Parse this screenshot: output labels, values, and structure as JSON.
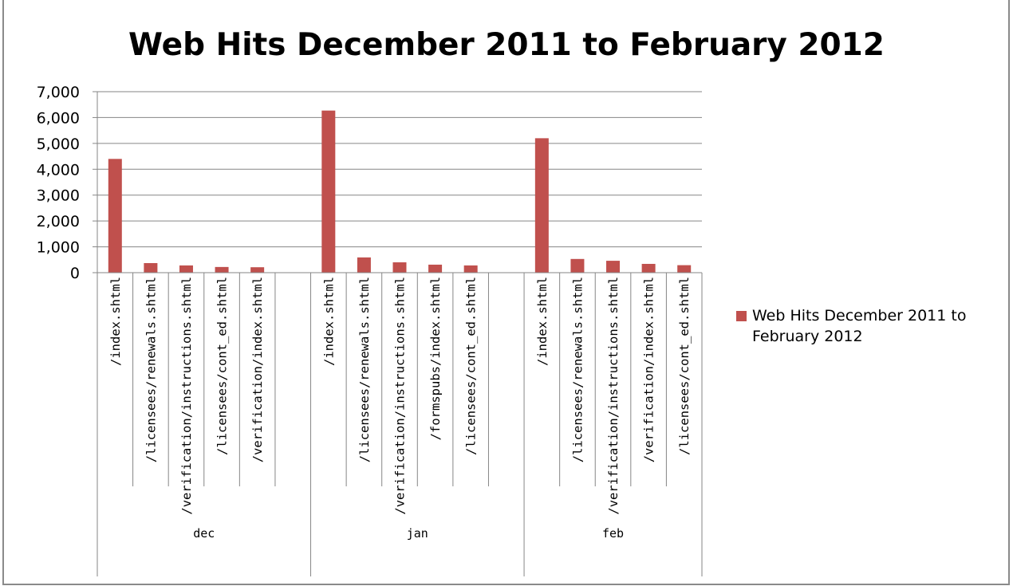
{
  "chart_data": {
    "type": "bar",
    "title": "Web Hits December 2011 to February 2012",
    "series": [
      {
        "name": "Web Hits December 2011 to February 2012",
        "color": "#c0504d"
      }
    ],
    "groups": [
      {
        "label": "dec",
        "categories": [
          "/index.shtml",
          "/licensees/renewals.shtml",
          "/verification/instructions.shtml",
          "/licensees/cont_ed.shtml",
          "/verification/index.shtml",
          ""
        ],
        "values": [
          4400,
          370,
          280,
          220,
          210,
          null
        ]
      },
      {
        "label": "jan",
        "categories": [
          "/index.shtml",
          "/licensees/renewals.shtml",
          "/verification/instructions.shtml",
          "/formspubs/index.shtml",
          "/licensees/cont_ed.shtml",
          ""
        ],
        "values": [
          6270,
          590,
          400,
          310,
          280,
          null
        ]
      },
      {
        "label": "feb",
        "categories": [
          "/index.shtml",
          "/licensees/renewals.shtml",
          "/verification/instructions.shtml",
          "/verification/index.shtml",
          "/licensees/cont_ed.shtml"
        ],
        "values": [
          5200,
          530,
          460,
          340,
          290
        ]
      }
    ],
    "yticks": [
      "0",
      "1,000",
      "2,000",
      "3,000",
      "4,000",
      "5,000",
      "6,000",
      "7,000"
    ],
    "ylim": [
      0,
      7000
    ],
    "grid": true,
    "legend_position": "right"
  }
}
